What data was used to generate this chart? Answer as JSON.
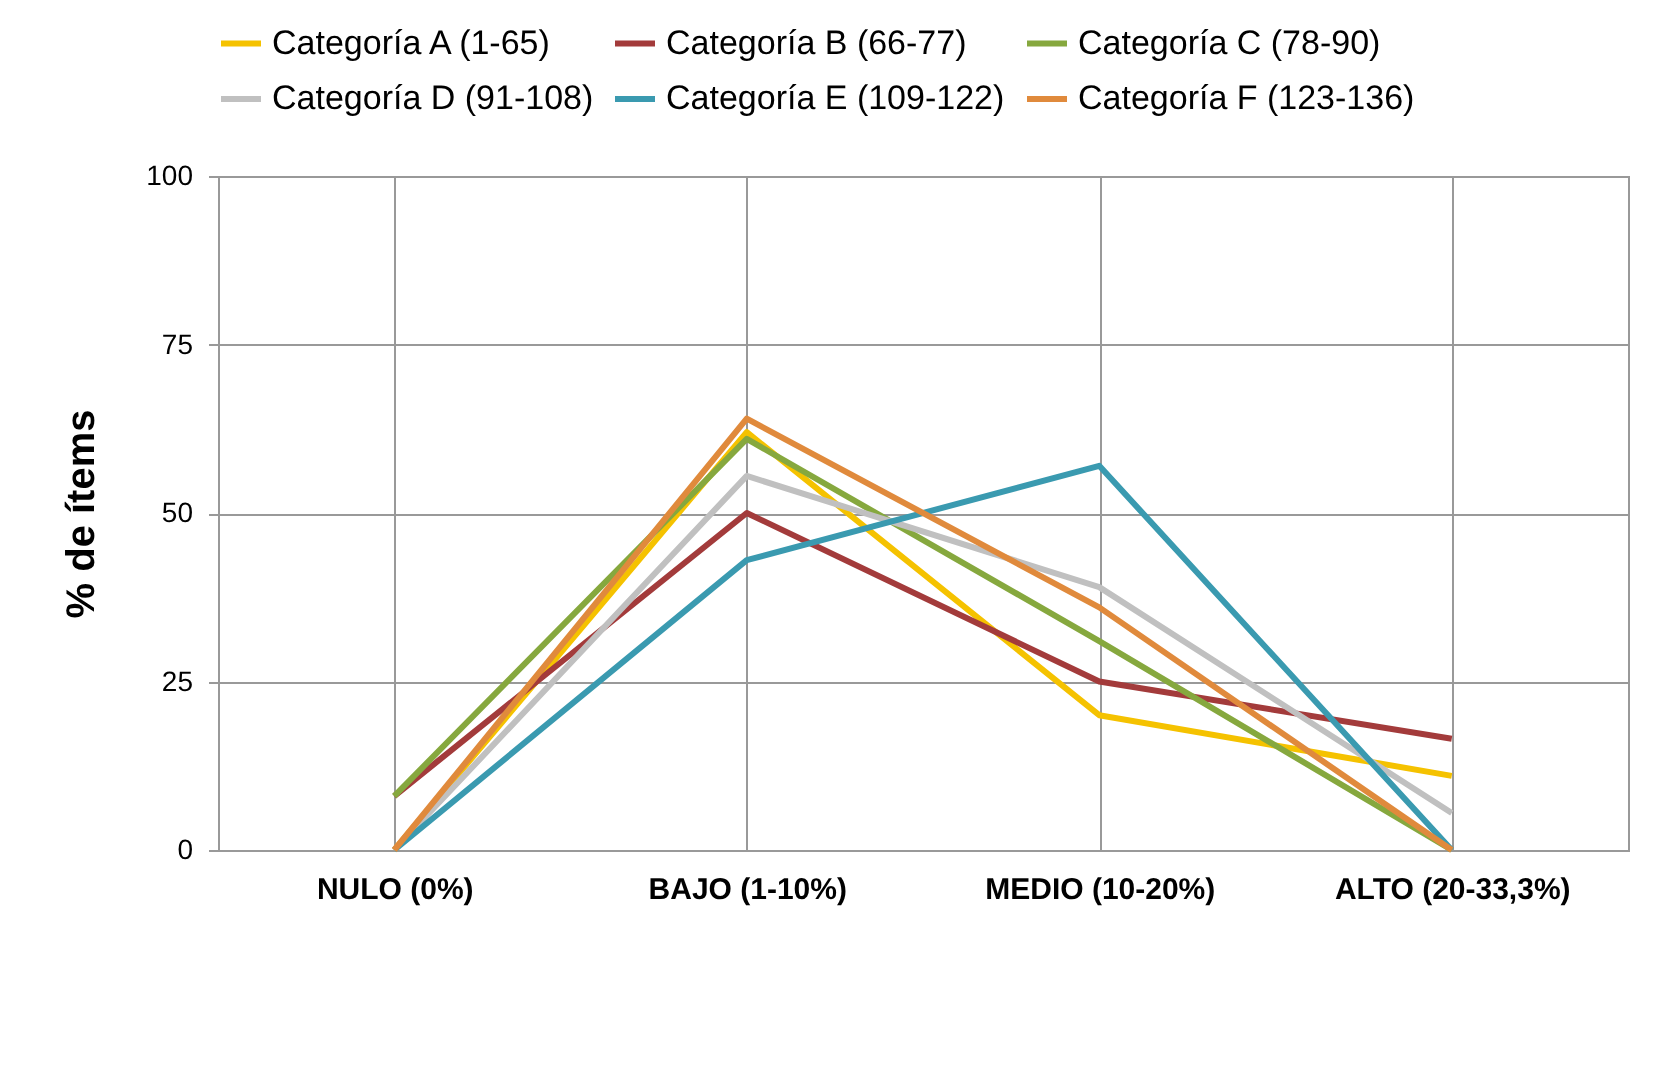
{
  "chart_data": {
    "type": "line",
    "ylabel": "% de ítems",
    "categories": [
      "NULO (0%)",
      "BAJO (1-10%)",
      "MEDIO (10-20%)",
      "ALTO (20-33,3%)"
    ],
    "series": [
      {
        "name": "Categoría A (1-65)",
        "color": "#f5c200",
        "values": [
          0,
          62,
          20,
          11
        ]
      },
      {
        "name": "Categoría B (66-77)",
        "color": "#a33b3b",
        "values": [
          8,
          50,
          25,
          16.5
        ]
      },
      {
        "name": "Categoría C (78-90)",
        "color": "#86a83e",
        "values": [
          8,
          61,
          31,
          0
        ]
      },
      {
        "name": "Categoría D (91-108)",
        "color": "#c0c0c0",
        "values": [
          0,
          55.5,
          39,
          5.5
        ]
      },
      {
        "name": "Categoría E (109-122)",
        "color": "#3a9ab0",
        "values": [
          0,
          43,
          57,
          0
        ]
      },
      {
        "name": "Categoría F (123-136)",
        "color": "#e08a3c",
        "values": [
          0,
          64,
          36,
          0
        ]
      }
    ],
    "ylim": [
      0,
      100
    ],
    "yticks": [
      0,
      25,
      50,
      75,
      100
    ],
    "grid": true,
    "legend": "top",
    "marker": "none",
    "line_style": "solid"
  }
}
